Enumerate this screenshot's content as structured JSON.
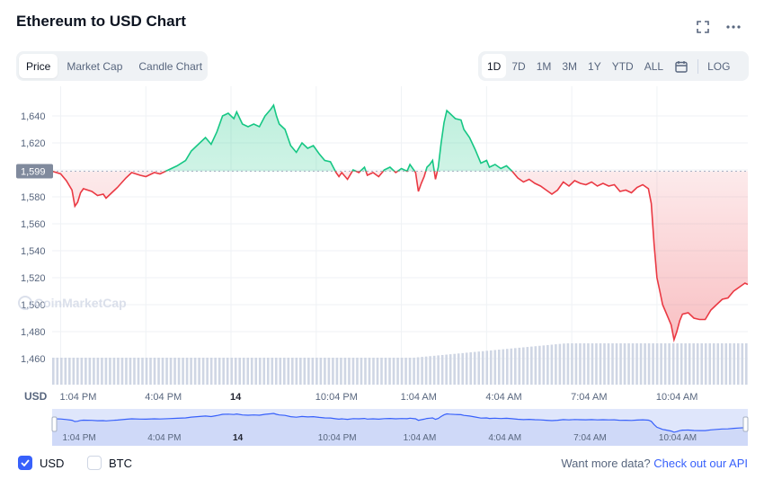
{
  "header": {
    "title": "Ethereum to USD Chart"
  },
  "tabs": [
    {
      "label": "Price",
      "active": true
    },
    {
      "label": "Market Cap",
      "active": false
    },
    {
      "label": "Candle Chart",
      "active": false
    }
  ],
  "ranges": [
    {
      "label": "1D",
      "active": true
    },
    {
      "label": "7D",
      "active": false
    },
    {
      "label": "1M",
      "active": false
    },
    {
      "label": "3M",
      "active": false
    },
    {
      "label": "1Y",
      "active": false
    },
    {
      "label": "YTD",
      "active": false
    },
    {
      "label": "ALL",
      "active": false
    }
  ],
  "log_label": "LOG",
  "icons": [
    "fullscreen-icon",
    "more-icon",
    "calendar-icon",
    "check-icon"
  ],
  "colors": {
    "up": "#16c784",
    "down": "#ea3943",
    "accent": "#3861fb",
    "volume": "#cfd6e4",
    "navigator_fill": "#dfe6fb"
  },
  "watermark": "CoinMarketCap",
  "legend": [
    {
      "label": "USD",
      "checked": true
    },
    {
      "label": "BTC",
      "checked": false
    }
  ],
  "footer": {
    "text": "Want more data?",
    "link": "Check out our API"
  },
  "chart_data": {
    "type": "line",
    "title": "Ethereum to USD Chart",
    "xlabel": "",
    "ylabel": "USD",
    "reference_value": 1599,
    "reference_label": "1,599",
    "ylim": [
      1450,
      1655
    ],
    "y_ticks": [
      1460,
      1480,
      1500,
      1520,
      1540,
      1560,
      1580,
      1600,
      1620,
      1640
    ],
    "y_tick_labels": [
      "1,460",
      "1,480",
      "1,500",
      "1,520",
      "1,540",
      "1,560",
      "1,580",
      "",
      "1,620",
      "1,640"
    ],
    "x_range": [
      0,
      24.5
    ],
    "x_ticks": [
      {
        "t": 0.3,
        "label": "1:04 PM",
        "bold": false
      },
      {
        "t": 3.3,
        "label": "4:04 PM",
        "bold": false
      },
      {
        "t": 6.3,
        "label": "14",
        "bold": true
      },
      {
        "t": 9.3,
        "label": "10:04 PM",
        "bold": false
      },
      {
        "t": 12.3,
        "label": "1:04 AM",
        "bold": false
      },
      {
        "t": 15.3,
        "label": "4:04 AM",
        "bold": false
      },
      {
        "t": 18.3,
        "label": "7:04 AM",
        "bold": false
      },
      {
        "t": 21.3,
        "label": "10:04 AM",
        "bold": false
      }
    ],
    "grid": true,
    "legend_position": "bottom-left",
    "series": [
      {
        "values": [
          [
            0,
            1599
          ],
          [
            0.3,
            1597
          ],
          [
            0.5,
            1592
          ],
          [
            0.7,
            1585
          ],
          [
            0.8,
            1573
          ],
          [
            0.9,
            1576
          ],
          [
            1.0,
            1583
          ],
          [
            1.1,
            1586
          ],
          [
            1.4,
            1584
          ],
          [
            1.6,
            1581
          ],
          [
            1.8,
            1582
          ],
          [
            1.9,
            1579
          ],
          [
            2.1,
            1583
          ],
          [
            2.3,
            1587
          ],
          [
            2.6,
            1594
          ],
          [
            2.8,
            1598
          ],
          [
            3.1,
            1596
          ],
          [
            3.3,
            1595
          ],
          [
            3.6,
            1598
          ],
          [
            3.8,
            1597
          ],
          [
            4.1,
            1600
          ],
          [
            4.4,
            1603
          ],
          [
            4.7,
            1607
          ],
          [
            4.9,
            1614
          ],
          [
            5.2,
            1620
          ],
          [
            5.4,
            1624
          ],
          [
            5.6,
            1619
          ],
          [
            5.8,
            1628
          ],
          [
            6.0,
            1640
          ],
          [
            6.2,
            1642
          ],
          [
            6.4,
            1638
          ],
          [
            6.5,
            1643
          ],
          [
            6.7,
            1634
          ],
          [
            6.9,
            1632
          ],
          [
            7.1,
            1634
          ],
          [
            7.3,
            1632
          ],
          [
            7.5,
            1640
          ],
          [
            7.7,
            1645
          ],
          [
            7.8,
            1648
          ],
          [
            7.9,
            1640
          ],
          [
            8.0,
            1634
          ],
          [
            8.2,
            1630
          ],
          [
            8.4,
            1618
          ],
          [
            8.6,
            1613
          ],
          [
            8.8,
            1620
          ],
          [
            9.0,
            1616
          ],
          [
            9.2,
            1618
          ],
          [
            9.4,
            1612
          ],
          [
            9.6,
            1607
          ],
          [
            9.8,
            1606
          ],
          [
            10.0,
            1598
          ],
          [
            10.1,
            1595
          ],
          [
            10.2,
            1598
          ],
          [
            10.4,
            1593
          ],
          [
            10.6,
            1600
          ],
          [
            10.8,
            1598
          ],
          [
            11.0,
            1602
          ],
          [
            11.1,
            1596
          ],
          [
            11.3,
            1598
          ],
          [
            11.5,
            1595
          ],
          [
            11.7,
            1600
          ],
          [
            11.9,
            1602
          ],
          [
            12.1,
            1598
          ],
          [
            12.3,
            1601
          ],
          [
            12.5,
            1599
          ],
          [
            12.6,
            1604
          ],
          [
            12.8,
            1598
          ],
          [
            12.9,
            1584
          ],
          [
            13.0,
            1590
          ],
          [
            13.1,
            1595
          ],
          [
            13.2,
            1602
          ],
          [
            13.3,
            1604
          ],
          [
            13.4,
            1607
          ],
          [
            13.5,
            1593
          ],
          [
            13.6,
            1602
          ],
          [
            13.7,
            1620
          ],
          [
            13.8,
            1635
          ],
          [
            13.9,
            1644
          ],
          [
            14.0,
            1642
          ],
          [
            14.2,
            1638
          ],
          [
            14.4,
            1637
          ],
          [
            14.5,
            1630
          ],
          [
            14.7,
            1624
          ],
          [
            14.9,
            1615
          ],
          [
            15.1,
            1605
          ],
          [
            15.3,
            1607
          ],
          [
            15.4,
            1602
          ],
          [
            15.6,
            1604
          ],
          [
            15.8,
            1601
          ],
          [
            16.0,
            1603
          ],
          [
            16.2,
            1599
          ],
          [
            16.4,
            1594
          ],
          [
            16.6,
            1591
          ],
          [
            16.8,
            1593
          ],
          [
            17.0,
            1590
          ],
          [
            17.2,
            1588
          ],
          [
            17.4,
            1585
          ],
          [
            17.6,
            1582
          ],
          [
            17.8,
            1585
          ],
          [
            18.0,
            1591
          ],
          [
            18.2,
            1588
          ],
          [
            18.4,
            1592
          ],
          [
            18.6,
            1590
          ],
          [
            18.8,
            1589
          ],
          [
            19.0,
            1591
          ],
          [
            19.2,
            1588
          ],
          [
            19.4,
            1590
          ],
          [
            19.6,
            1588
          ],
          [
            19.8,
            1589
          ],
          [
            20.0,
            1584
          ],
          [
            20.2,
            1585
          ],
          [
            20.4,
            1583
          ],
          [
            20.6,
            1587
          ],
          [
            20.8,
            1589
          ],
          [
            21.0,
            1586
          ],
          [
            21.1,
            1575
          ],
          [
            21.2,
            1545
          ],
          [
            21.3,
            1520
          ],
          [
            21.4,
            1510
          ],
          [
            21.5,
            1500
          ],
          [
            21.6,
            1495
          ],
          [
            21.8,
            1485
          ],
          [
            21.9,
            1474
          ],
          [
            22.0,
            1480
          ],
          [
            22.1,
            1488
          ],
          [
            22.2,
            1493
          ],
          [
            22.4,
            1494
          ],
          [
            22.6,
            1490
          ],
          [
            22.8,
            1489
          ],
          [
            23.0,
            1489
          ],
          [
            23.2,
            1496
          ],
          [
            23.4,
            1500
          ],
          [
            23.6,
            1504
          ],
          [
            23.8,
            1505
          ],
          [
            24.0,
            1510
          ],
          [
            24.2,
            1513
          ],
          [
            24.4,
            1516
          ],
          [
            24.5,
            1515
          ]
        ]
      }
    ]
  }
}
